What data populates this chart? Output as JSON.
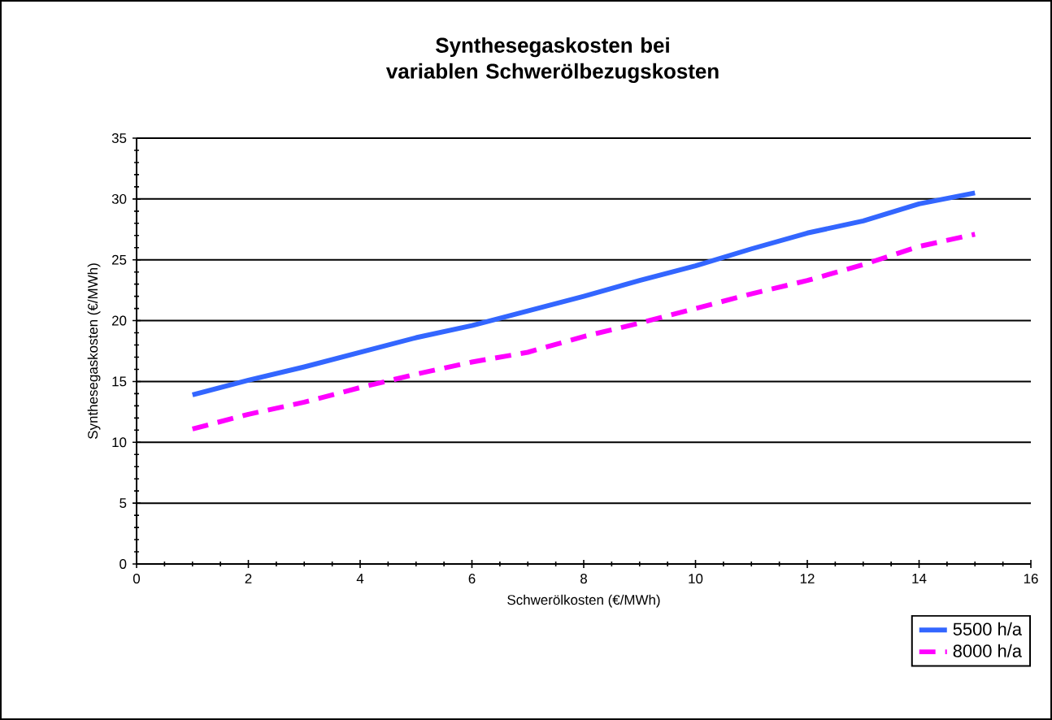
{
  "chart_data": {
    "type": "line",
    "title": "Synthesegaskosten bei variablen Schwerölbezugskosten",
    "xlabel": "Schwerölkosten (€/MWh)",
    "ylabel": "Synthesegaskosten (€/MWh)",
    "x": [
      1,
      2,
      3,
      4,
      5,
      6,
      7,
      8,
      9,
      10,
      11,
      12,
      13,
      14,
      15
    ],
    "series": [
      {
        "name": "5500 h/a",
        "color": "#3366ff",
        "line_style": "solid",
        "values": [
          13.9,
          15.1,
          16.2,
          17.4,
          18.6,
          19.6,
          20.8,
          22.0,
          23.3,
          24.5,
          25.9,
          27.2,
          28.2,
          29.6,
          30.5
        ]
      },
      {
        "name": "8000 h/a",
        "color": "#ff00ff",
        "line_style": "dashed",
        "values": [
          11.1,
          12.3,
          13.3,
          14.5,
          15.6,
          16.6,
          17.4,
          18.7,
          19.8,
          21.0,
          22.2,
          23.3,
          24.6,
          26.1,
          27.1
        ]
      }
    ],
    "xlim": [
      0,
      16
    ],
    "xticks": [
      0,
      2,
      4,
      6,
      8,
      10,
      12,
      14,
      16
    ],
    "ylim": [
      0,
      35
    ],
    "yticks": [
      0,
      5,
      10,
      15,
      20,
      25,
      30,
      35
    ],
    "grid": "y",
    "legend": "bottom right",
    "marker": "none"
  }
}
